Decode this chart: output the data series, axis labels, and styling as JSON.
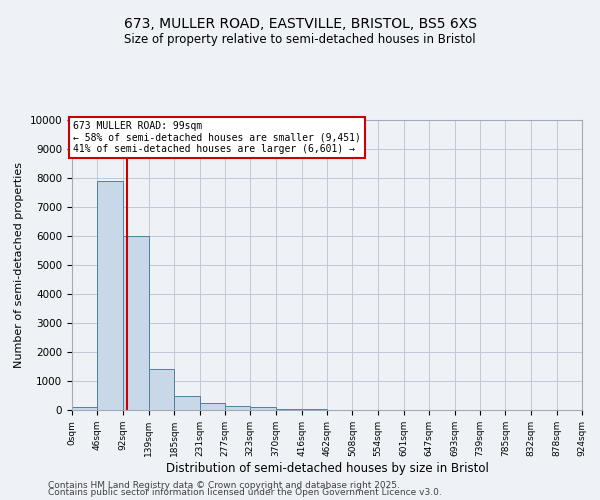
{
  "title1": "673, MULLER ROAD, EASTVILLE, BRISTOL, BS5 6XS",
  "title2": "Size of property relative to semi-detached houses in Bristol",
  "xlabel": "Distribution of semi-detached houses by size in Bristol",
  "ylabel": "Number of semi-detached properties",
  "bar_edges": [
    0,
    46,
    92,
    139,
    185,
    231,
    277,
    323,
    370,
    416,
    462,
    508,
    554,
    601,
    647,
    693,
    739,
    785,
    832,
    878,
    924
  ],
  "bar_heights": [
    100,
    7900,
    6000,
    1400,
    500,
    250,
    150,
    100,
    50,
    20,
    10,
    5,
    3,
    2,
    1,
    1,
    1,
    1,
    1,
    1
  ],
  "bar_color": "#c8d8e8",
  "bar_edgecolor": "#5080a0",
  "property_size": 99,
  "property_line_color": "#cc0000",
  "annotation_text": "673 MULLER ROAD: 99sqm\n← 58% of semi-detached houses are smaller (9,451)\n41% of semi-detached houses are larger (6,601) →",
  "annotation_box_color": "#ffffff",
  "annotation_box_edgecolor": "#cc0000",
  "ylim": [
    0,
    10000
  ],
  "yticks": [
    0,
    1000,
    2000,
    3000,
    4000,
    5000,
    6000,
    7000,
    8000,
    9000,
    10000
  ],
  "tick_labels": [
    "0sqm",
    "46sqm",
    "92sqm",
    "139sqm",
    "185sqm",
    "231sqm",
    "277sqm",
    "323sqm",
    "370sqm",
    "416sqm",
    "462sqm",
    "508sqm",
    "554sqm",
    "601sqm",
    "647sqm",
    "693sqm",
    "739sqm",
    "785sqm",
    "832sqm",
    "878sqm",
    "924sqm"
  ],
  "footer1": "Contains HM Land Registry data © Crown copyright and database right 2025.",
  "footer2": "Contains public sector information licensed under the Open Government Licence v3.0.",
  "background_color": "#eef2f6",
  "grid_color": "#c0c8d8"
}
